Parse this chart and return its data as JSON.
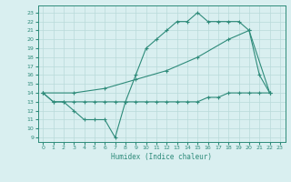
{
  "line1_x": [
    0,
    1,
    2,
    3,
    4,
    5,
    6,
    7,
    8,
    9,
    10,
    11,
    12,
    13,
    14,
    15,
    16,
    17,
    18,
    19,
    20,
    21,
    22
  ],
  "line1_y": [
    14,
    13,
    13,
    12,
    11,
    11,
    11,
    9,
    13,
    16,
    19,
    20,
    21,
    22,
    22,
    23,
    22,
    22,
    22,
    22,
    21,
    16,
    14
  ],
  "line2_x": [
    0,
    1,
    2,
    3,
    4,
    5,
    6,
    7,
    8,
    9,
    10,
    11,
    12,
    13,
    14,
    15,
    16,
    17,
    18,
    19,
    20,
    21,
    22
  ],
  "line2_y": [
    14,
    13,
    13,
    13,
    13,
    13,
    13,
    13,
    13,
    13,
    13,
    13,
    13,
    13,
    13,
    13,
    13.5,
    13.5,
    14,
    14,
    14,
    14,
    14
  ],
  "line3_x": [
    0,
    3,
    6,
    9,
    12,
    15,
    18,
    20,
    22
  ],
  "line3_y": [
    14,
    14,
    14.5,
    15.5,
    16.5,
    18,
    20,
    21,
    14
  ],
  "color": "#2e8b7a",
  "bg_color": "#d9eff0",
  "grid_color": "#b8dada",
  "yticks": [
    9,
    10,
    11,
    12,
    13,
    14,
    15,
    16,
    17,
    18,
    19,
    20,
    21,
    22,
    23
  ],
  "xticks": [
    0,
    1,
    2,
    3,
    4,
    5,
    6,
    7,
    8,
    9,
    10,
    11,
    12,
    13,
    14,
    15,
    16,
    17,
    18,
    19,
    20,
    21,
    22,
    23
  ],
  "xlabel": "Humidex (Indice chaleur)",
  "ylim": [
    8.5,
    23.8
  ],
  "xlim": [
    -0.5,
    23.5
  ]
}
